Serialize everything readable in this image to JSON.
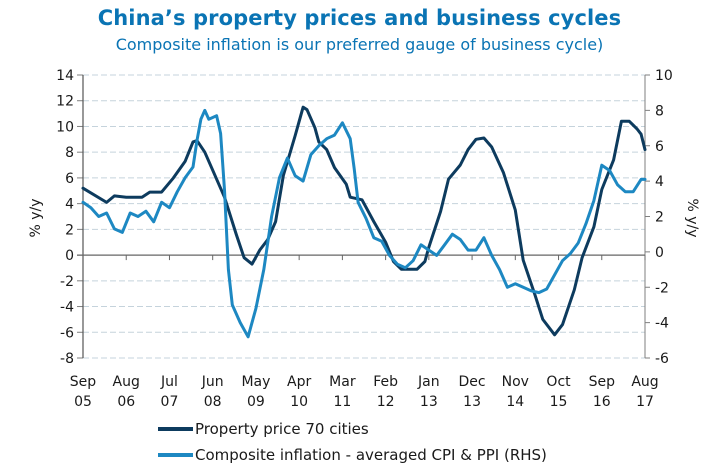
{
  "header": {
    "title": "China’s property prices and business cycles",
    "subtitle": "Composite inflation is our preferred gauge of business cycle)"
  },
  "colors": {
    "property": "#0d3b5e",
    "inflation": "#1d88c2",
    "title": "#0a74b4",
    "grid": "#c5d3dc",
    "axis": "#7f7f7f"
  },
  "chart_data": {
    "type": "line",
    "title": "China’s property prices and business cycles",
    "subtitle": "Composite inflation is our preferred gauge of business cycle)",
    "xlabel": "",
    "ylabel": "% y/y",
    "y2label": "% y/y",
    "ylim": [
      -8,
      14
    ],
    "y2lim": [
      -6,
      10
    ],
    "yticks": [
      "14",
      "12",
      "10",
      "8",
      "6",
      "4",
      "2",
      "0",
      "-2",
      "-4",
      "-6",
      "-8"
    ],
    "y2ticks": [
      "10",
      "8",
      "6",
      "4",
      "2",
      "0",
      "-2",
      "-4",
      "-6"
    ],
    "x_range_months": [
      0,
      143
    ],
    "x_start": "Sep 2005",
    "x_end": "Aug 2017",
    "xticks": [
      {
        "month": 0,
        "line1": "Sep",
        "line2": "05"
      },
      {
        "month": 11,
        "line1": "Aug",
        "line2": "06"
      },
      {
        "month": 22,
        "line1": "Jul",
        "line2": "07"
      },
      {
        "month": 33,
        "line1": "Jun",
        "line2": "08"
      },
      {
        "month": 44,
        "line1": "May",
        "line2": "09"
      },
      {
        "month": 55,
        "line1": "Apr",
        "line2": "10"
      },
      {
        "month": 66,
        "line1": "Mar",
        "line2": "11"
      },
      {
        "month": 77,
        "line1": "Feb",
        "line2": "12"
      },
      {
        "month": 88,
        "line1": "Jan",
        "line2": "13"
      },
      {
        "month": 99,
        "line1": "Dec",
        "line2": "13"
      },
      {
        "month": 110,
        "line1": "Nov",
        "line2": "14"
      },
      {
        "month": 121,
        "line1": "Oct",
        "line2": "15"
      },
      {
        "month": 132,
        "line1": "Sep",
        "line2": "16"
      },
      {
        "month": 143,
        "line1": "Aug",
        "line2": "17"
      }
    ],
    "grid": true,
    "legend_position": "bottom",
    "series": [
      {
        "name": "Property price 70 cities",
        "axis": "left",
        "color": "#0d3b5e",
        "x": [
          0,
          6,
          8,
          11,
          15,
          17,
          20,
          23,
          26,
          28,
          29,
          31,
          33,
          36,
          39,
          41,
          43,
          45,
          47,
          49,
          51,
          54,
          56,
          57,
          59,
          60,
          62,
          64,
          67,
          68,
          71,
          74,
          77,
          79,
          81,
          85,
          87,
          88,
          91,
          93,
          96,
          98,
          100,
          102,
          104,
          107,
          110,
          112,
          115,
          117,
          120,
          122,
          125,
          127,
          130,
          132,
          135,
          137,
          139,
          141,
          142,
          143
        ],
        "values": [
          5.2,
          4.1,
          4.6,
          4.5,
          4.5,
          4.9,
          4.9,
          6.0,
          7.3,
          8.8,
          8.9,
          8.0,
          6.6,
          4.5,
          1.6,
          -0.2,
          -0.7,
          0.4,
          1.2,
          2.6,
          6.2,
          9.3,
          11.5,
          11.3,
          9.9,
          8.8,
          8.2,
          6.8,
          5.5,
          4.5,
          4.3,
          2.6,
          1.0,
          -0.5,
          -1.1,
          -1.1,
          -0.5,
          0.6,
          3.4,
          5.9,
          7.0,
          8.2,
          9.0,
          9.1,
          8.4,
          6.4,
          3.5,
          -0.4,
          -3.1,
          -5.0,
          -6.2,
          -5.4,
          -2.7,
          -0.2,
          2.2,
          5.1,
          7.4,
          10.4,
          10.4,
          9.8,
          9.4,
          8.2
        ]
      },
      {
        "name": "Composite inflation - averaged CPI & PPI (RHS)",
        "axis": "right",
        "color": "#1d88c2",
        "x": [
          0,
          2,
          4,
          6,
          8,
          10,
          12,
          14,
          16,
          18,
          20,
          22,
          24,
          26,
          28,
          29,
          30,
          31,
          32,
          33,
          34,
          35,
          36,
          37,
          38,
          40,
          42,
          44,
          46,
          48,
          50,
          52,
          54,
          56,
          58,
          60,
          62,
          64,
          66,
          68,
          69,
          70,
          72,
          74,
          76,
          78,
          80,
          82,
          84,
          86,
          88,
          90,
          92,
          94,
          96,
          98,
          100,
          102,
          104,
          106,
          108,
          110,
          112,
          114,
          116,
          118,
          120,
          122,
          124,
          126,
          128,
          130,
          132,
          134,
          136,
          138,
          140,
          142,
          143
        ],
        "values": [
          2.8,
          2.5,
          2.0,
          2.2,
          1.3,
          1.1,
          2.2,
          2.0,
          2.3,
          1.7,
          2.8,
          2.5,
          3.4,
          4.2,
          4.8,
          6.3,
          7.5,
          8.0,
          7.5,
          7.6,
          7.7,
          6.7,
          3.5,
          -1.0,
          -3.0,
          -4.0,
          -4.8,
          -3.2,
          -1.0,
          2.0,
          4.2,
          5.3,
          4.3,
          4.0,
          5.5,
          6.0,
          6.4,
          6.6,
          7.3,
          6.4,
          4.7,
          2.8,
          1.9,
          0.8,
          0.6,
          -0.2,
          -0.7,
          -0.9,
          -0.5,
          0.4,
          0.1,
          -0.2,
          0.4,
          1.0,
          0.7,
          0.1,
          0.1,
          0.8,
          -0.2,
          -1.0,
          -2.0,
          -1.8,
          -2.0,
          -2.2,
          -2.3,
          -2.1,
          -1.3,
          -0.5,
          -0.1,
          0.5,
          1.6,
          2.9,
          4.9,
          4.6,
          3.8,
          3.4,
          3.4,
          4.1,
          4.1
        ]
      }
    ]
  },
  "legend": {
    "items": [
      {
        "label": "Property price 70 cities"
      },
      {
        "label": "Composite inflation - averaged CPI & PPI (RHS)"
      }
    ]
  }
}
